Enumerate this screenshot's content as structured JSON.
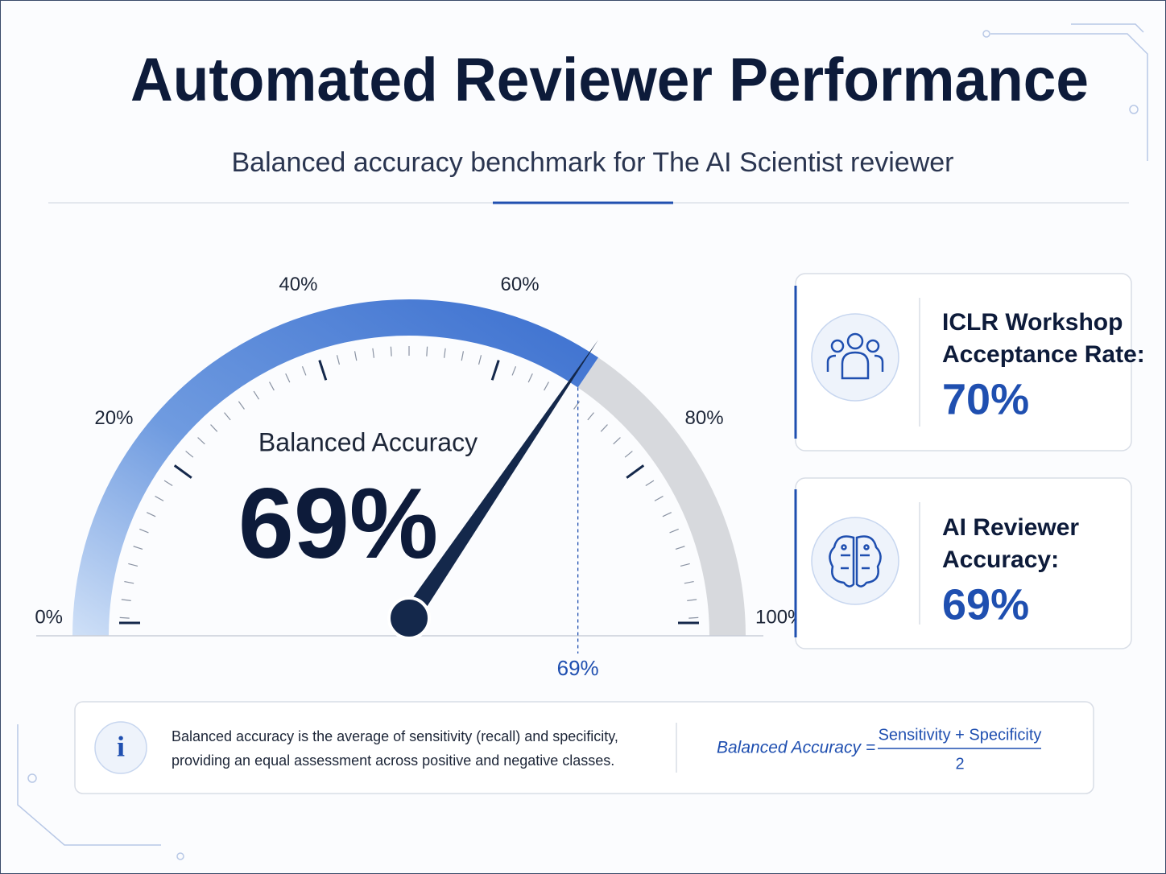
{
  "header": {
    "title": "Automated Reviewer Performance",
    "subtitle": "Balanced accuracy benchmark for The AI Scientist reviewer"
  },
  "chart_data": {
    "type": "gauge",
    "label": "Balanced Accuracy",
    "value": 69,
    "value_labels": "69%",
    "xlim": [
      0,
      100
    ],
    "color": "#3f74d0",
    "track_color": "#d7d9dd",
    "needle_color": "#14284b",
    "xticks": [
      {
        "value": 0,
        "label": "0%"
      },
      {
        "value": 20,
        "label": "20%"
      },
      {
        "value": 40,
        "label": "40%"
      },
      {
        "value": 60,
        "label": "60%"
      },
      {
        "value": 80,
        "label": "80%"
      },
      {
        "value": 100,
        "label": "100%"
      }
    ]
  },
  "cards": [
    {
      "label_lines": [
        "ICLR Workshop",
        "Acceptance Rate:"
      ],
      "value_label": "70%"
    },
    {
      "label_lines": [
        "AI Reviewer",
        "Accuracy:"
      ],
      "value_label": "69%"
    }
  ],
  "info": {
    "lines": [
      "Balanced accuracy is the average of sensitivity (recall) and specificity,",
      "providing an equal assessment across positive and negative classes."
    ],
    "icon": "i",
    "formula": {
      "lhs": "Balanced Accuracy =",
      "numerator": "Sensitivity + Specificity",
      "denominator": "2"
    }
  }
}
